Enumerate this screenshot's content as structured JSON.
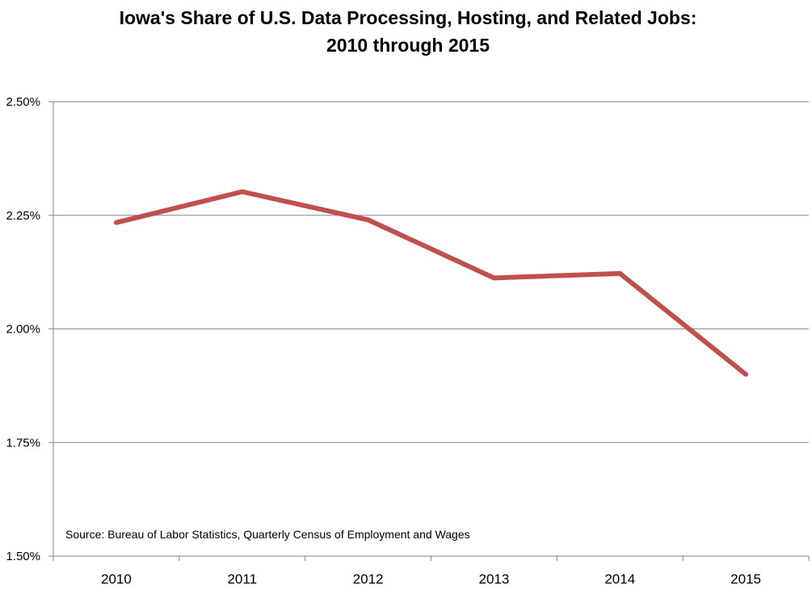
{
  "chart_data": {
    "type": "line",
    "title_lines": [
      "Iowa's Share of U.S. Data Processing, Hosting, and Related Jobs:",
      "2010 through 2015"
    ],
    "xlabel": "",
    "ylabel": "",
    "categories": [
      "2010",
      "2011",
      "2012",
      "2013",
      "2014",
      "2015"
    ],
    "series": [
      {
        "values": [
          2.234,
          2.302,
          2.24,
          2.112,
          2.122,
          1.9
        ],
        "color": "#c0504d"
      }
    ],
    "ylim": [
      1.5,
      2.5
    ],
    "y_ticks": [
      {
        "value": 2.5,
        "label": "2.50%"
      },
      {
        "value": 2.25,
        "label": "2.25%"
      },
      {
        "value": 2.0,
        "label": "2.00%"
      },
      {
        "value": 1.75,
        "label": "1.75%"
      },
      {
        "value": 1.5,
        "label": "1.50%"
      }
    ],
    "grid": true,
    "legend": "none",
    "annotation": "Source: Bureau of Labor Statistics, Quarterly Census of Employment and Wages",
    "gridline_color": "#868686"
  }
}
